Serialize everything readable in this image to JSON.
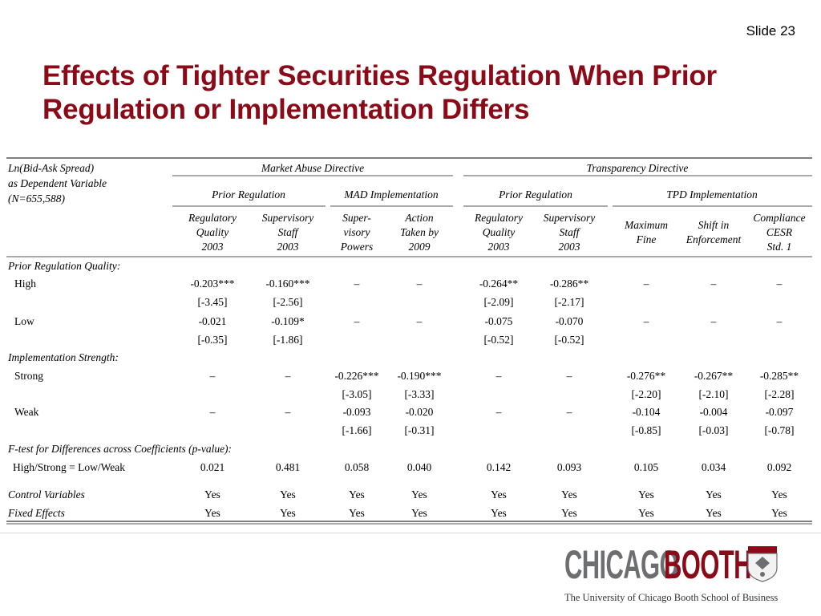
{
  "slide": {
    "number": "Slide 23",
    "title_line1": "Effects of Tighter Securities Regulation When Prior",
    "title_line2": "Regulation or Implementation Differs"
  },
  "table": {
    "corner": [
      "Ln(Bid-Ask Spread)",
      "as Dependent Variable",
      "(N=655,588)"
    ],
    "group_headers": [
      "Market Abuse Directive",
      "Transparency Directive"
    ],
    "sub_headers": [
      "Prior Regulation",
      "MAD Implementation",
      "Prior Regulation",
      "TPD Implementation"
    ],
    "col_headers": [
      [
        "Regulatory",
        "Quality",
        "2003"
      ],
      [
        "Supervisory",
        "Staff",
        "2003"
      ],
      [
        "Super-",
        "visory",
        "Powers"
      ],
      [
        "Action",
        "Taken by",
        "2009"
      ],
      [
        "Regulatory",
        "Quality",
        "2003"
      ],
      [
        "Supervisory",
        "Staff",
        "2003"
      ],
      [
        "Maximum",
        "Fine"
      ],
      [
        "Shift in",
        "Enforcement"
      ],
      [
        "Compliance",
        "CESR",
        "Std. 1"
      ]
    ],
    "sections": {
      "prior": "Prior Regulation Quality:",
      "impl": "Implementation Strength:",
      "ftest": "F-test for Differences across Coefficients (p-value):"
    },
    "rows": {
      "high": {
        "label": "High",
        "coef": [
          "-0.203***",
          "-0.160***",
          "–",
          "–",
          "-0.264**",
          "-0.286**",
          "–",
          "–",
          "–"
        ],
        "tstat": [
          "[-3.45]",
          "[-2.56]",
          "",
          "",
          "[-2.09]",
          "[-2.17]",
          "",
          "",
          ""
        ]
      },
      "low": {
        "label": "Low",
        "coef": [
          "-0.021",
          "-0.109*",
          "–",
          "–",
          "-0.075",
          "-0.070",
          "–",
          "–",
          "–"
        ],
        "tstat": [
          "[-0.35]",
          "[-1.86]",
          "",
          "",
          "[-0.52]",
          "[-0.52]",
          "",
          "",
          ""
        ]
      },
      "strong": {
        "label": "Strong",
        "coef": [
          "–",
          "–",
          "-0.226***",
          "-0.190***",
          "–",
          "–",
          "-0.276**",
          "-0.267**",
          "-0.285**"
        ],
        "tstat": [
          "",
          "",
          "[-3.05]",
          "[-3.33]",
          "",
          "",
          "[-2.20]",
          "[-2.10]",
          "[-2.28]"
        ]
      },
      "weak": {
        "label": "Weak",
        "coef": [
          "–",
          "–",
          "-0.093",
          "-0.020",
          "–",
          "–",
          "-0.104",
          "-0.004",
          "-0.097"
        ],
        "tstat": [
          "",
          "",
          "[-1.66]",
          "[-0.31]",
          "",
          "",
          "[-0.85]",
          "[-0.03]",
          "[-0.78]"
        ]
      },
      "ftest": {
        "label": "High/Strong = Low/Weak",
        "values": [
          "0.021",
          "0.481",
          "0.058",
          "0.040",
          "0.142",
          "0.093",
          "0.105",
          "0.034",
          "0.092"
        ]
      },
      "control": {
        "label": "Control Variables",
        "values": [
          "Yes",
          "Yes",
          "Yes",
          "Yes",
          "Yes",
          "Yes",
          "Yes",
          "Yes",
          "Yes"
        ]
      },
      "fixed": {
        "label": "Fixed Effects",
        "values": [
          "Yes",
          "Yes",
          "Yes",
          "Yes",
          "Yes",
          "Yes",
          "Yes",
          "Yes",
          "Yes"
        ]
      }
    }
  },
  "footer": {
    "logo_part1": "CHICAGO",
    "logo_part2": "BOOTH",
    "tagline": "The University of Chicago Booth School of Business",
    "logo_gray": "#6d6e71",
    "logo_maroon": "#8b0a17"
  },
  "colors": {
    "title": "#8b0a17",
    "rule": "#555555"
  },
  "icons": {
    "shield": "university-crest-icon"
  }
}
